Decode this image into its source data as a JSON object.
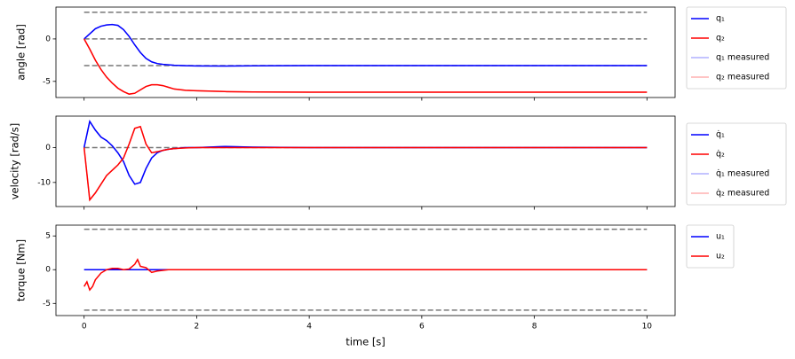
{
  "chart_data": [
    {
      "type": "line",
      "y_label": "angle [rad]",
      "x": [
        0,
        0.1,
        0.2,
        0.3,
        0.4,
        0.5,
        0.6,
        0.7,
        0.8,
        0.9,
        1.0,
        1.1,
        1.2,
        1.3,
        1.4,
        1.5,
        1.6,
        1.8,
        2,
        2.5,
        3,
        4,
        5,
        6,
        8,
        10
      ],
      "series": [
        {
          "name": "q₁ measured",
          "color": "#b0b0ff",
          "values": [
            0,
            0.6,
            1.2,
            1.5,
            1.65,
            1.7,
            1.6,
            1.1,
            0.3,
            -0.7,
            -1.6,
            -2.3,
            -2.7,
            -2.9,
            -3.0,
            -3.05,
            -3.1,
            -3.15,
            -3.18,
            -3.2,
            -3.17,
            -3.14,
            -3.14,
            -3.14,
            -3.14,
            -3.14
          ]
        },
        {
          "name": "q₂ measured",
          "color": "#ffb0b0",
          "values": [
            0,
            -1.2,
            -2.5,
            -3.6,
            -4.5,
            -5.2,
            -5.8,
            -6.2,
            -6.5,
            -6.4,
            -6.0,
            -5.6,
            -5.4,
            -5.4,
            -5.5,
            -5.7,
            -5.9,
            -6.05,
            -6.1,
            -6.2,
            -6.25,
            -6.28,
            -6.28,
            -6.28,
            -6.28,
            -6.28
          ]
        },
        {
          "name": "q₁",
          "color": "#0000ff",
          "values": [
            0,
            0.6,
            1.2,
            1.5,
            1.65,
            1.7,
            1.6,
            1.1,
            0.3,
            -0.7,
            -1.6,
            -2.3,
            -2.7,
            -2.9,
            -3.0,
            -3.05,
            -3.1,
            -3.15,
            -3.18,
            -3.2,
            -3.17,
            -3.14,
            -3.14,
            -3.14,
            -3.14,
            -3.14
          ]
        },
        {
          "name": "q₂",
          "color": "#ff0000",
          "values": [
            0,
            -1.2,
            -2.5,
            -3.6,
            -4.5,
            -5.2,
            -5.8,
            -6.2,
            -6.5,
            -6.4,
            -6.0,
            -5.6,
            -5.4,
            -5.4,
            -5.5,
            -5.7,
            -5.9,
            -6.05,
            -6.1,
            -6.2,
            -6.25,
            -6.28,
            -6.28,
            -6.28,
            -6.28,
            -6.28
          ]
        }
      ],
      "legend_order": [
        2,
        3,
        0,
        1
      ],
      "hlines": [
        3.14,
        0,
        -3.14
      ],
      "xlim": [
        -0.5,
        10.5
      ],
      "ylim": [
        -6.9,
        3.75
      ],
      "xticks": [
        0,
        2,
        4,
        6,
        8,
        10
      ],
      "yticks": [
        -5,
        0
      ]
    },
    {
      "type": "line",
      "y_label": "velocity [rad/s]",
      "x": [
        0,
        0.1,
        0.2,
        0.3,
        0.4,
        0.5,
        0.6,
        0.7,
        0.8,
        0.9,
        1.0,
        1.1,
        1.2,
        1.3,
        1.4,
        1.5,
        1.6,
        1.8,
        2,
        2.5,
        3,
        4,
        5,
        6,
        8,
        10
      ],
      "series": [
        {
          "name": "q̇₁ measured",
          "color": "#b0b0ff",
          "values": [
            0,
            7.5,
            5,
            3,
            2,
            0.5,
            -1.5,
            -4,
            -8,
            -10.5,
            -10,
            -6,
            -3,
            -1.5,
            -0.8,
            -0.5,
            -0.3,
            0,
            0,
            0.3,
            0.1,
            0,
            0,
            0,
            0,
            0
          ]
        },
        {
          "name": "q̇₂ measured",
          "color": "#ffb0b0",
          "values": [
            0,
            -15,
            -13,
            -10.5,
            -8,
            -6.5,
            -5,
            -3,
            1,
            5.5,
            6,
            1,
            -1.5,
            -1.2,
            -0.8,
            -0.5,
            -0.3,
            -0.1,
            0,
            0,
            0,
            0,
            0,
            0,
            0,
            0
          ]
        },
        {
          "name": "q̇₁",
          "color": "#0000ff",
          "values": [
            0,
            7.5,
            5,
            3,
            2,
            0.5,
            -1.5,
            -4,
            -8,
            -10.5,
            -10,
            -6,
            -3,
            -1.5,
            -0.8,
            -0.5,
            -0.3,
            0,
            0,
            0.3,
            0.1,
            0,
            0,
            0,
            0,
            0
          ]
        },
        {
          "name": "q̇₂",
          "color": "#ff0000",
          "values": [
            0,
            -15,
            -13,
            -10.5,
            -8,
            -6.5,
            -5,
            -3,
            1,
            5.5,
            6,
            1,
            -1.5,
            -1.2,
            -0.8,
            -0.5,
            -0.3,
            -0.1,
            0,
            0,
            0,
            0,
            0,
            0,
            0,
            0
          ]
        }
      ],
      "legend_order": [
        2,
        3,
        0,
        1
      ],
      "hlines": [
        0
      ],
      "xlim": [
        -0.5,
        10.5
      ],
      "ylim": [
        -16.9,
        9.0
      ],
      "xticks": [
        0,
        2,
        4,
        6,
        8,
        10
      ],
      "yticks": [
        -10,
        0
      ]
    },
    {
      "type": "line",
      "y_label": "torque [Nm]",
      "x_label": "time [s]",
      "x": [
        0,
        0.05,
        0.1,
        0.15,
        0.2,
        0.3,
        0.4,
        0.5,
        0.6,
        0.7,
        0.8,
        0.9,
        0.95,
        1.0,
        1.1,
        1.2,
        1.3,
        1.5,
        2,
        3,
        5,
        10
      ],
      "series": [
        {
          "name": "u₁",
          "color": "#0000ff",
          "values": [
            0,
            0,
            0,
            0,
            0,
            0,
            0,
            0,
            0,
            0,
            0,
            0,
            0,
            0,
            0,
            0,
            0,
            0,
            0,
            0,
            0,
            0
          ]
        },
        {
          "name": "u₂",
          "color": "#ff0000",
          "values": [
            -2.5,
            -1.8,
            -3,
            -2.5,
            -1.5,
            -0.5,
            0,
            0.2,
            0.2,
            0,
            0.1,
            0.8,
            1.5,
            0.5,
            0.3,
            -0.4,
            -0.2,
            0,
            0,
            0,
            0,
            0
          ]
        }
      ],
      "legend_order": [
        0,
        1
      ],
      "hlines": [
        6,
        -6
      ],
      "xlim": [
        -0.5,
        10.5
      ],
      "ylim": [
        -6.8,
        6.6
      ],
      "xticks": [
        0,
        2,
        4,
        6,
        8,
        10
      ],
      "yticks": [
        -5,
        0,
        5
      ]
    }
  ]
}
